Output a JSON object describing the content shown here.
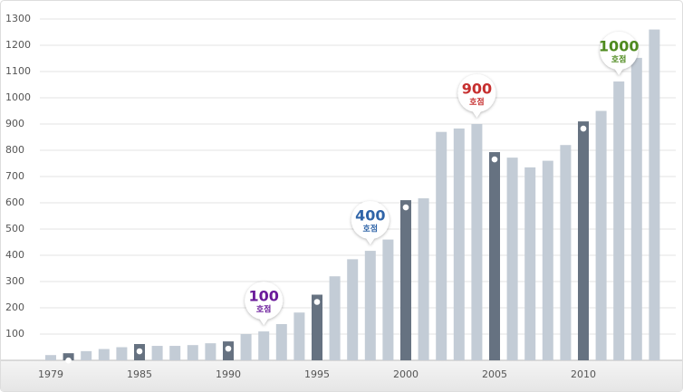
{
  "chart_data": {
    "type": "bar",
    "categories": [
      "1979",
      null,
      null,
      null,
      null,
      "1985",
      null,
      null,
      null,
      null,
      "1990",
      null,
      null,
      null,
      null,
      "1995",
      null,
      null,
      null,
      null,
      "2000",
      null,
      null,
      null,
      null,
      "2005",
      null,
      null,
      null,
      null,
      "2010",
      null,
      null,
      null,
      null
    ],
    "values": [
      20,
      27,
      35,
      43,
      50,
      62,
      55,
      55,
      58,
      65,
      72,
      100,
      110,
      138,
      182,
      250,
      320,
      385,
      417,
      460,
      610,
      617,
      870,
      883,
      900,
      793,
      772,
      735,
      760,
      820,
      910,
      950,
      1062,
      1152,
      1260
    ],
    "color": "#c3ccd6",
    "colors": [
      "#c3ccd6",
      "#667281",
      "#c3ccd6",
      "#c3ccd6",
      "#c3ccd6",
      "#667281",
      "#c3ccd6",
      "#c3ccd6",
      "#c3ccd6",
      "#c3ccd6",
      "#667281",
      "#c3ccd6",
      "#c3ccd6",
      "#c3ccd6",
      "#c3ccd6",
      "#667281",
      "#c3ccd6",
      "#c3ccd6",
      "#c3ccd6",
      "#c3ccd6",
      "#667281",
      "#c3ccd6",
      "#c3ccd6",
      "#c3ccd6",
      "#c3ccd6",
      "#667281",
      "#c3ccd6",
      "#c3ccd6",
      "#c3ccd6",
      "#c3ccd6",
      "#667281",
      "#c3ccd6",
      "#c3ccd6",
      "#c3ccd6",
      "#c3ccd6"
    ],
    "ylim": [
      0,
      1300
    ],
    "yticks": [
      100,
      200,
      300,
      400,
      500,
      600,
      700,
      800,
      900,
      1000,
      1100,
      1200,
      1300
    ],
    "grid": true,
    "annotations": [
      {
        "index": 12,
        "text": "100",
        "subtext": "호점",
        "color": "#6a1b9a"
      },
      {
        "index": 18,
        "text": "400",
        "subtext": "호점",
        "color": "#2f64a8"
      },
      {
        "index": 24,
        "text": "900",
        "subtext": "호점",
        "color": "#c62f2f"
      },
      {
        "index": 32,
        "text": "1000",
        "subtext": "호점",
        "color": "#4e8a1e"
      }
    ]
  }
}
